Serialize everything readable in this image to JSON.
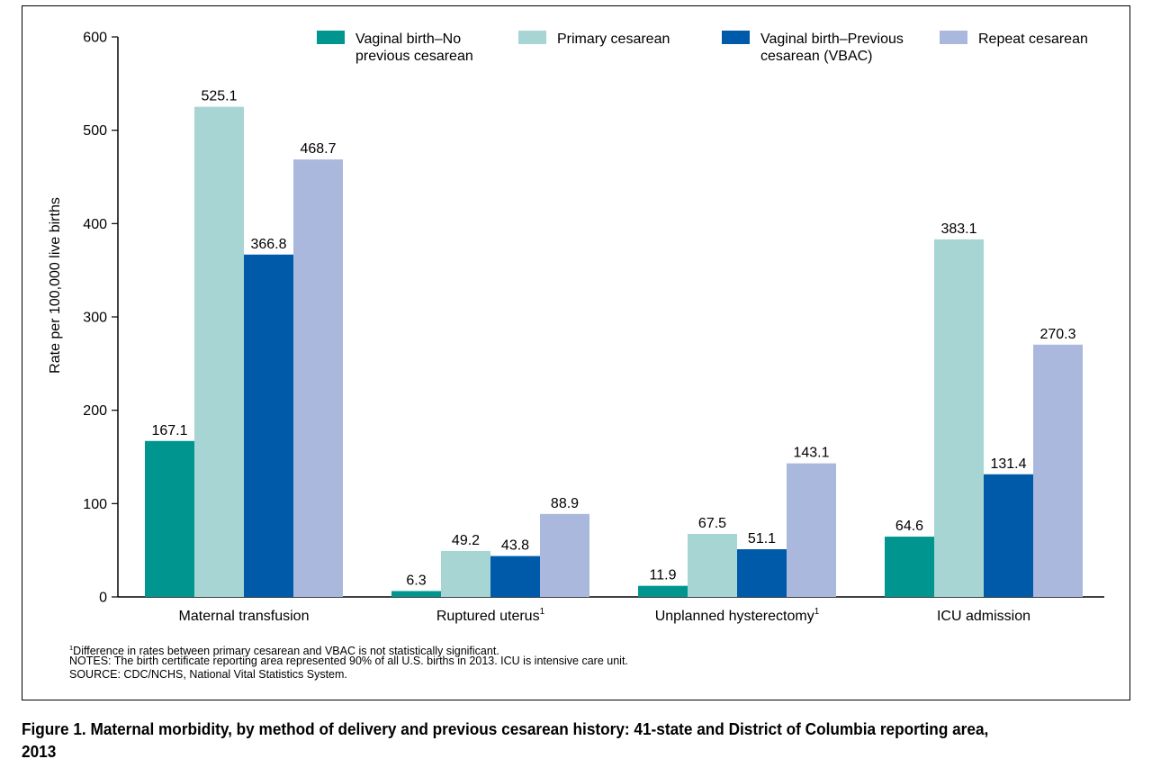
{
  "chart_data": {
    "type": "bar",
    "ylabel": "Rate per 100,000 live births",
    "ylim": [
      0,
      600
    ],
    "yticks": [
      0,
      100,
      200,
      300,
      400,
      500,
      600
    ],
    "categories": [
      {
        "label": "Maternal transfusion",
        "sup": ""
      },
      {
        "label": "Ruptured uterus",
        "sup": "1"
      },
      {
        "label": "Unplanned hysterectomy",
        "sup": "1"
      },
      {
        "label": "ICU admission",
        "sup": ""
      }
    ],
    "series": [
      {
        "name": "Vaginal birth–No previous cesarean",
        "legend_lines": [
          "Vaginal birth–No",
          "previous cesarean"
        ],
        "color": "#00968f",
        "values": [
          167.1,
          6.3,
          11.9,
          64.6
        ],
        "labels": [
          "167.1",
          "6.3",
          "11.9",
          "64.6"
        ]
      },
      {
        "name": "Primary cesarean",
        "legend_lines": [
          "Primary cesarean"
        ],
        "color": "#a6d5d3",
        "values": [
          525.1,
          49.2,
          67.5,
          383.1
        ],
        "labels": [
          "525.1",
          "49.2",
          "67.5",
          "383.1"
        ]
      },
      {
        "name": "Vaginal birth–Previous cesarean (VBAC)",
        "legend_lines": [
          "Vaginal birth–Previous",
          "cesarean (VBAC)"
        ],
        "color": "#005aaa",
        "values": [
          366.8,
          43.8,
          51.1,
          131.4
        ],
        "labels": [
          "366.8",
          "43.8",
          "51.1",
          "131.4"
        ]
      },
      {
        "name": "Repeat cesarean",
        "legend_lines": [
          "Repeat cesarean"
        ],
        "color": "#aab8de",
        "values": [
          468.7,
          88.9,
          143.1,
          270.3
        ],
        "labels": [
          "468.7",
          "88.9",
          "143.1",
          "270.3"
        ]
      }
    ],
    "legend_position": "top",
    "grid": false
  },
  "notes": {
    "footnote_sup": "1",
    "footnote": "Difference in rates between primary cesarean and VBAC is not statistically significant.",
    "notes": "NOTES: The birth certificate reporting area represented 90% of all U.S. births in 2013. ICU is intensive care unit.",
    "source": "SOURCE: CDC/NCHS, National Vital Statistics System."
  },
  "caption": "Figure 1. Maternal morbidity, by method of delivery and previous cesarean history: 41-state and District of Columbia reporting area, 2013"
}
